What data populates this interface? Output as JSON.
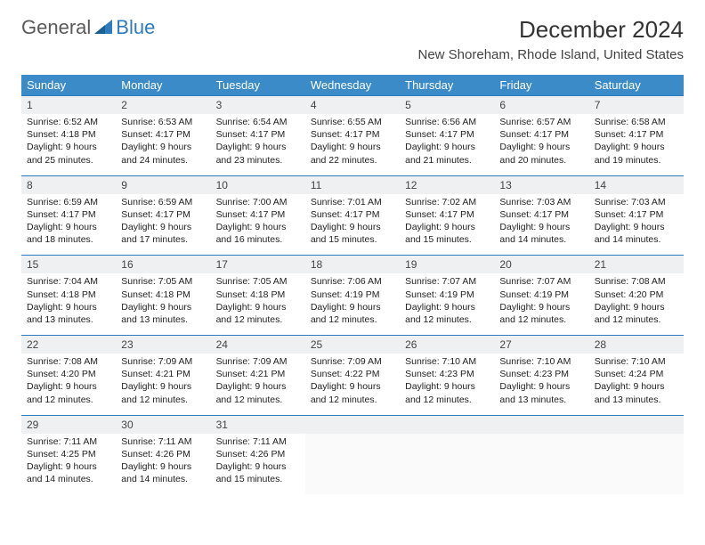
{
  "brand": {
    "general": "General",
    "blue": "Blue",
    "accent": "#2f7bbf"
  },
  "title": "December 2024",
  "location": "New Shoreham, Rhode Island, United States",
  "dayHeaders": [
    "Sunday",
    "Monday",
    "Tuesday",
    "Wednesday",
    "Thursday",
    "Friday",
    "Saturday"
  ],
  "colors": {
    "header_bg": "#3b8bc9",
    "header_text": "#ffffff",
    "daynum_bg": "#eef0f1",
    "daynum_border": "#2f7bbf",
    "text": "#222222"
  },
  "weeks": [
    [
      {
        "n": "1",
        "sunrise": "6:52 AM",
        "sunset": "4:18 PM",
        "daylight": "9 hours and 25 minutes."
      },
      {
        "n": "2",
        "sunrise": "6:53 AM",
        "sunset": "4:17 PM",
        "daylight": "9 hours and 24 minutes."
      },
      {
        "n": "3",
        "sunrise": "6:54 AM",
        "sunset": "4:17 PM",
        "daylight": "9 hours and 23 minutes."
      },
      {
        "n": "4",
        "sunrise": "6:55 AM",
        "sunset": "4:17 PM",
        "daylight": "9 hours and 22 minutes."
      },
      {
        "n": "5",
        "sunrise": "6:56 AM",
        "sunset": "4:17 PM",
        "daylight": "9 hours and 21 minutes."
      },
      {
        "n": "6",
        "sunrise": "6:57 AM",
        "sunset": "4:17 PM",
        "daylight": "9 hours and 20 minutes."
      },
      {
        "n": "7",
        "sunrise": "6:58 AM",
        "sunset": "4:17 PM",
        "daylight": "9 hours and 19 minutes."
      }
    ],
    [
      {
        "n": "8",
        "sunrise": "6:59 AM",
        "sunset": "4:17 PM",
        "daylight": "9 hours and 18 minutes."
      },
      {
        "n": "9",
        "sunrise": "6:59 AM",
        "sunset": "4:17 PM",
        "daylight": "9 hours and 17 minutes."
      },
      {
        "n": "10",
        "sunrise": "7:00 AM",
        "sunset": "4:17 PM",
        "daylight": "9 hours and 16 minutes."
      },
      {
        "n": "11",
        "sunrise": "7:01 AM",
        "sunset": "4:17 PM",
        "daylight": "9 hours and 15 minutes."
      },
      {
        "n": "12",
        "sunrise": "7:02 AM",
        "sunset": "4:17 PM",
        "daylight": "9 hours and 15 minutes."
      },
      {
        "n": "13",
        "sunrise": "7:03 AM",
        "sunset": "4:17 PM",
        "daylight": "9 hours and 14 minutes."
      },
      {
        "n": "14",
        "sunrise": "7:03 AM",
        "sunset": "4:17 PM",
        "daylight": "9 hours and 14 minutes."
      }
    ],
    [
      {
        "n": "15",
        "sunrise": "7:04 AM",
        "sunset": "4:18 PM",
        "daylight": "9 hours and 13 minutes."
      },
      {
        "n": "16",
        "sunrise": "7:05 AM",
        "sunset": "4:18 PM",
        "daylight": "9 hours and 13 minutes."
      },
      {
        "n": "17",
        "sunrise": "7:05 AM",
        "sunset": "4:18 PM",
        "daylight": "9 hours and 12 minutes."
      },
      {
        "n": "18",
        "sunrise": "7:06 AM",
        "sunset": "4:19 PM",
        "daylight": "9 hours and 12 minutes."
      },
      {
        "n": "19",
        "sunrise": "7:07 AM",
        "sunset": "4:19 PM",
        "daylight": "9 hours and 12 minutes."
      },
      {
        "n": "20",
        "sunrise": "7:07 AM",
        "sunset": "4:19 PM",
        "daylight": "9 hours and 12 minutes."
      },
      {
        "n": "21",
        "sunrise": "7:08 AM",
        "sunset": "4:20 PM",
        "daylight": "9 hours and 12 minutes."
      }
    ],
    [
      {
        "n": "22",
        "sunrise": "7:08 AM",
        "sunset": "4:20 PM",
        "daylight": "9 hours and 12 minutes."
      },
      {
        "n": "23",
        "sunrise": "7:09 AM",
        "sunset": "4:21 PM",
        "daylight": "9 hours and 12 minutes."
      },
      {
        "n": "24",
        "sunrise": "7:09 AM",
        "sunset": "4:21 PM",
        "daylight": "9 hours and 12 minutes."
      },
      {
        "n": "25",
        "sunrise": "7:09 AM",
        "sunset": "4:22 PM",
        "daylight": "9 hours and 12 minutes."
      },
      {
        "n": "26",
        "sunrise": "7:10 AM",
        "sunset": "4:23 PM",
        "daylight": "9 hours and 12 minutes."
      },
      {
        "n": "27",
        "sunrise": "7:10 AM",
        "sunset": "4:23 PM",
        "daylight": "9 hours and 13 minutes."
      },
      {
        "n": "28",
        "sunrise": "7:10 AM",
        "sunset": "4:24 PM",
        "daylight": "9 hours and 13 minutes."
      }
    ],
    [
      {
        "n": "29",
        "sunrise": "7:11 AM",
        "sunset": "4:25 PM",
        "daylight": "9 hours and 14 minutes."
      },
      {
        "n": "30",
        "sunrise": "7:11 AM",
        "sunset": "4:26 PM",
        "daylight": "9 hours and 14 minutes."
      },
      {
        "n": "31",
        "sunrise": "7:11 AM",
        "sunset": "4:26 PM",
        "daylight": "9 hours and 15 minutes."
      },
      null,
      null,
      null,
      null
    ]
  ],
  "labels": {
    "sunrise": "Sunrise: ",
    "sunset": "Sunset: ",
    "daylight": "Daylight: "
  }
}
